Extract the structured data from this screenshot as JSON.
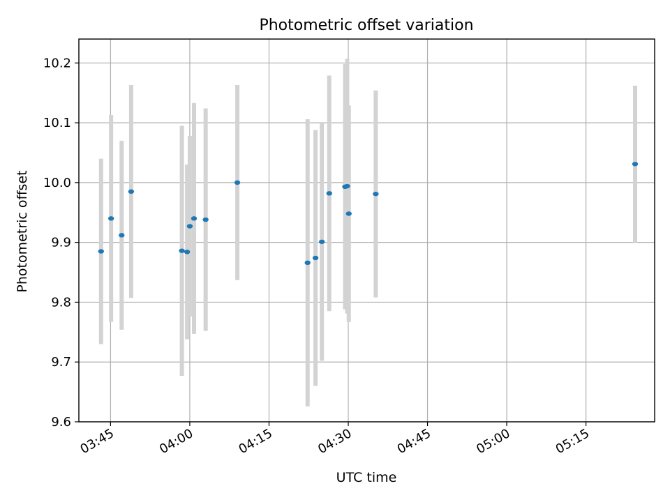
{
  "chart_data": {
    "type": "scatter",
    "title": "Photometric offset variation",
    "xlabel": "UTC time",
    "ylabel": "Photometric offset",
    "xlim": [
      "03:39",
      "05:28"
    ],
    "ylim": [
      9.6,
      10.24
    ],
    "x_ticks": [
      "03:45",
      "04:00",
      "04:15",
      "04:30",
      "04:45",
      "05:00",
      "05:15"
    ],
    "y_ticks": [
      9.6,
      9.7,
      9.8,
      9.9,
      10.0,
      10.1,
      10.2
    ],
    "grid": true,
    "colors": {
      "points": "#1f77b4",
      "error_bars": "#d3d3d3",
      "grid": "#b0b0b0",
      "axes": "#000000"
    },
    "points": [
      {
        "x": "03:43:12",
        "y": 9.885,
        "err": 0.155
      },
      {
        "x": "03:45:06",
        "y": 9.94,
        "err": 0.173
      },
      {
        "x": "03:47:06",
        "y": 9.912,
        "err": 0.158
      },
      {
        "x": "03:48:54",
        "y": 9.985,
        "err": 0.178
      },
      {
        "x": "03:58:30",
        "y": 9.886,
        "err": 0.209
      },
      {
        "x": "03:59:30",
        "y": 9.884,
        "err": 0.146
      },
      {
        "x": "04:00:00",
        "y": 9.927,
        "err": 0.151
      },
      {
        "x": "04:00:48",
        "y": 9.94,
        "err": 0.193
      },
      {
        "x": "04:03:00",
        "y": 9.938,
        "err": 0.186
      },
      {
        "x": "04:09:00",
        "y": 10.0,
        "err": 0.163
      },
      {
        "x": "04:22:18",
        "y": 9.866,
        "err": 0.24
      },
      {
        "x": "04:23:48",
        "y": 9.874,
        "err": 0.214
      },
      {
        "x": "04:25:00",
        "y": 9.901,
        "err": 0.199
      },
      {
        "x": "04:26:24",
        "y": 9.982,
        "err": 0.197
      },
      {
        "x": "04:29:24",
        "y": 9.993,
        "err": 0.205
      },
      {
        "x": "04:29:48",
        "y": 9.994,
        "err": 0.213
      },
      {
        "x": "04:30:06",
        "y": 9.948,
        "err": 0.181
      },
      {
        "x": "04:35:12",
        "y": 9.981,
        "err": 0.173
      },
      {
        "x": "05:24:18",
        "y": 10.031,
        "err": 0.131
      }
    ]
  }
}
